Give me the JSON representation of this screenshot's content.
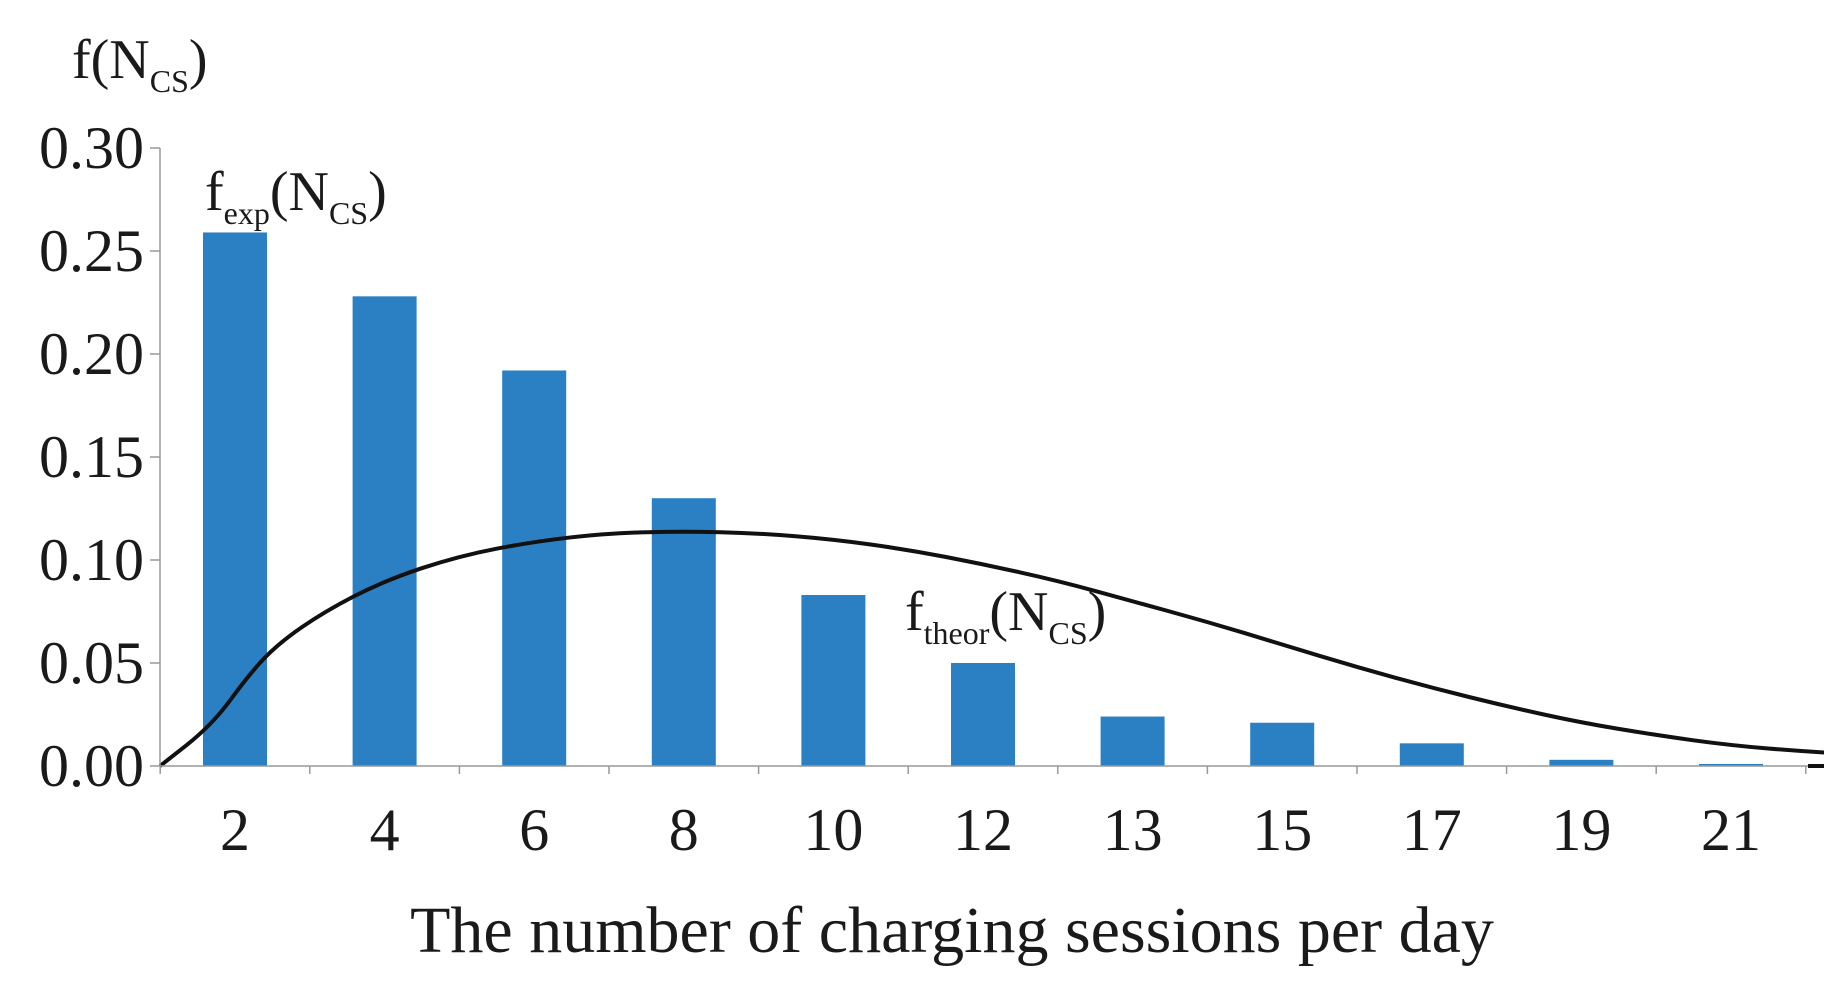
{
  "chart_data": {
    "type": "bar",
    "categories": [
      "2",
      "4",
      "6",
      "8",
      "10",
      "12",
      "13",
      "15",
      "17",
      "19",
      "21"
    ],
    "series": [
      {
        "name": "f_exp(N_CS)",
        "type": "bar",
        "color": "#2b7fc3",
        "values": [
          0.259,
          0.228,
          0.192,
          0.13,
          0.083,
          0.05,
          0.024,
          0.021,
          0.011,
          0.003,
          0.001
        ]
      },
      {
        "name": "f_theor(N_CS)",
        "type": "line",
        "color": "#111111",
        "points": [
          [
            0.5,
            0.0
          ],
          [
            0.85,
            0.02
          ],
          [
            1.1,
            0.045
          ],
          [
            1.3,
            0.06
          ],
          [
            1.6,
            0.075
          ],
          [
            2.0,
            0.09
          ],
          [
            2.5,
            0.102
          ],
          [
            3.0,
            0.109
          ],
          [
            3.5,
            0.113
          ],
          [
            4.0,
            0.114
          ],
          [
            4.5,
            0.113
          ],
          [
            5.0,
            0.11
          ],
          [
            5.5,
            0.105
          ],
          [
            6.0,
            0.098
          ],
          [
            6.5,
            0.09
          ],
          [
            7.0,
            0.08
          ],
          [
            7.5,
            0.07
          ],
          [
            8.0,
            0.059
          ],
          [
            8.5,
            0.048
          ],
          [
            9.0,
            0.038
          ],
          [
            9.5,
            0.029
          ],
          [
            10.0,
            0.021
          ],
          [
            10.5,
            0.015
          ],
          [
            11.0,
            0.01
          ],
          [
            11.5,
            0.007
          ],
          [
            12.0,
            0.005
          ],
          [
            12.5,
            0.003
          ],
          [
            13.0,
            0.002
          ],
          [
            13.5,
            0.001
          ],
          [
            14.0,
            0.001
          ],
          [
            14.5,
            0.0005
          ],
          [
            15.2,
            0.0002
          ]
        ]
      }
    ],
    "ylim": [
      0,
      0.3
    ],
    "yticks": [
      "0.00",
      "0.05",
      "0.10",
      "0.15",
      "0.20",
      "0.25",
      "0.30"
    ],
    "xlabel": "The number of charging sessions per day",
    "ylabel": {
      "main": "f(N",
      "sub": "CS",
      "close": ")"
    },
    "annotations": [
      {
        "id": "fexp",
        "main": "f",
        "sub1": "exp",
        "mid": "(N",
        "sub2": "CS",
        "close": ")"
      },
      {
        "id": "ftheor",
        "main": "f",
        "sub1": "theor",
        "mid": "(N",
        "sub2": "CS",
        "close": ")"
      }
    ],
    "grid": false,
    "legend": "none"
  }
}
